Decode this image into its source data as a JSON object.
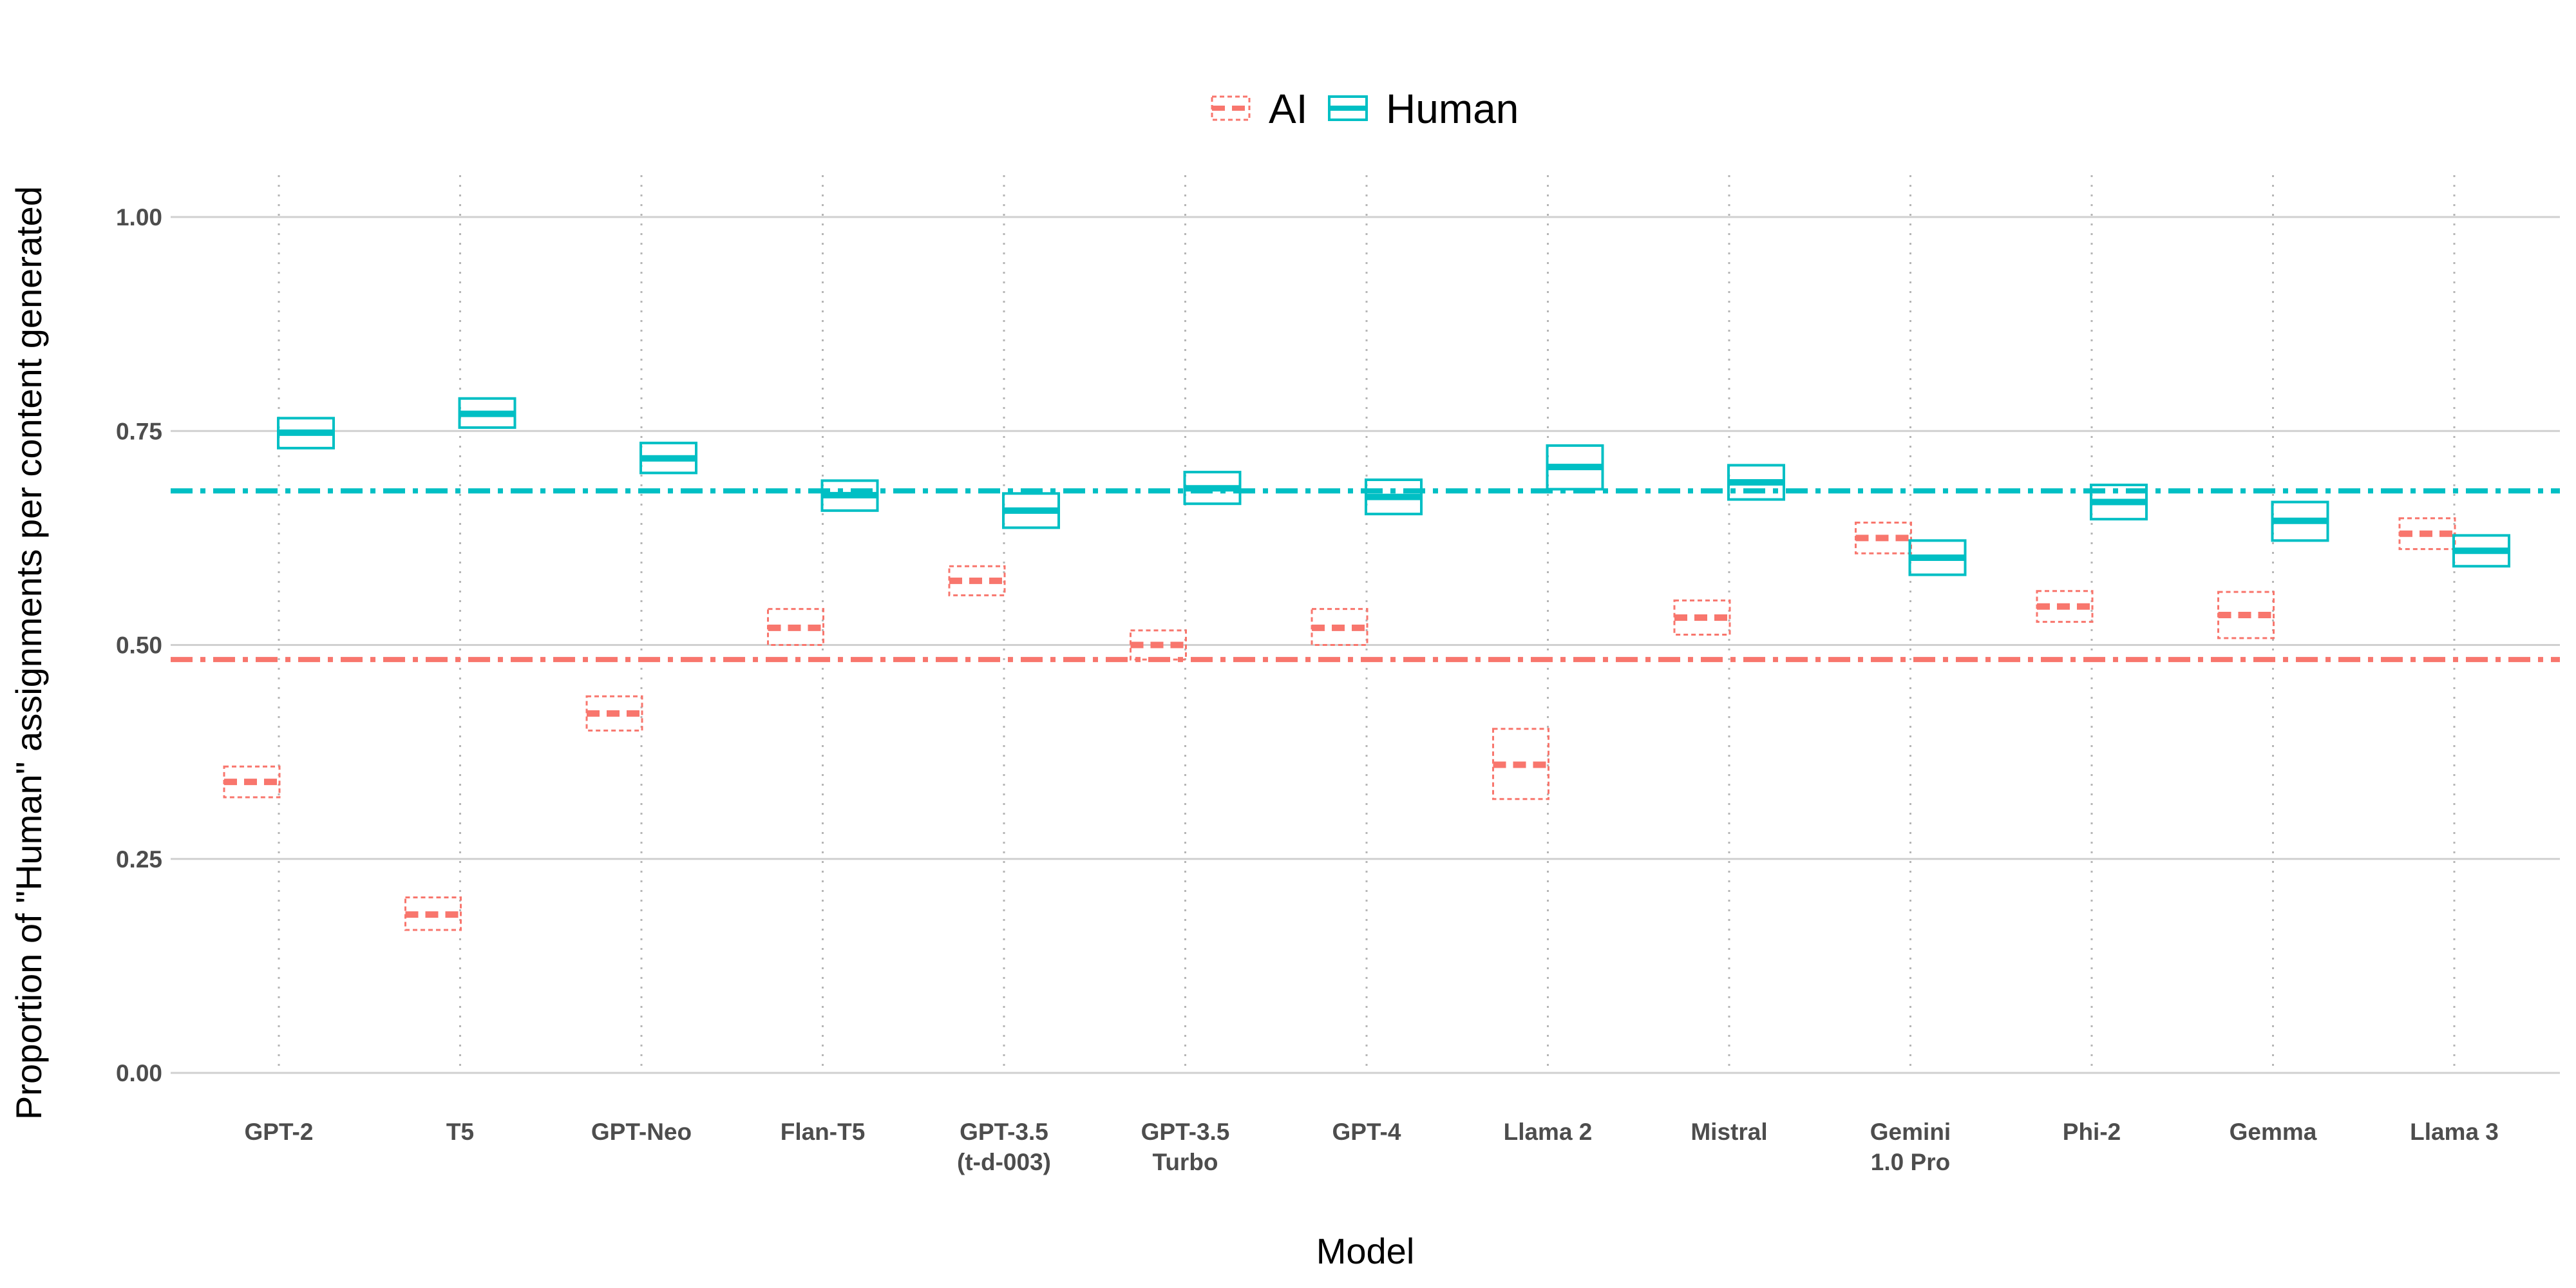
{
  "chart_data": {
    "type": "crossbar",
    "xlabel": "Model",
    "ylabel": "Proportion of \"Human\" assignments per content generated",
    "ylim": [
      0,
      1.05
    ],
    "yticks": [
      0.0,
      0.25,
      0.5,
      0.75,
      1.0
    ],
    "ytick_labels": [
      "0.00",
      "0.25",
      "0.50",
      "0.75",
      "1.00"
    ],
    "grid": true,
    "legend_position": "top",
    "categories": [
      [
        "GPT-2"
      ],
      [
        "T5"
      ],
      [
        "GPT-Neo"
      ],
      [
        "Flan-T5"
      ],
      [
        "GPT-3.5",
        "(t-d-003)"
      ],
      [
        "GPT-3.5",
        "Turbo"
      ],
      [
        "GPT-4"
      ],
      [
        "Llama 2"
      ],
      [
        "Mistral"
      ],
      [
        "Gemini",
        "1.0 Pro"
      ],
      [
        "Phi-2"
      ],
      [
        "Gemma"
      ],
      [
        "Llama 3"
      ]
    ],
    "series": [
      {
        "name": "AI",
        "color": "#F8766D",
        "linetype": "dashed",
        "mean": [
          0.34,
          0.185,
          0.42,
          0.52,
          0.575,
          0.5,
          0.52,
          0.36,
          0.532,
          0.625,
          0.545,
          0.535,
          0.63
        ],
        "lower": [
          0.322,
          0.167,
          0.4,
          0.5,
          0.558,
          0.483,
          0.5,
          0.32,
          0.512,
          0.607,
          0.527,
          0.508,
          0.612
        ],
        "upper": [
          0.358,
          0.205,
          0.44,
          0.542,
          0.592,
          0.517,
          0.542,
          0.402,
          0.552,
          0.643,
          0.563,
          0.562,
          0.648
        ],
        "reference_line": 0.483
      },
      {
        "name": "Human",
        "color": "#00BFC4",
        "linetype": "solid",
        "mean": [
          0.748,
          0.77,
          0.718,
          0.675,
          0.657,
          0.683,
          0.673,
          0.708,
          0.69,
          0.602,
          0.667,
          0.645,
          0.61
        ],
        "lower": [
          0.73,
          0.754,
          0.701,
          0.657,
          0.637,
          0.665,
          0.653,
          0.682,
          0.67,
          0.582,
          0.647,
          0.622,
          0.592
        ],
        "upper": [
          0.765,
          0.788,
          0.736,
          0.692,
          0.677,
          0.702,
          0.693,
          0.733,
          0.71,
          0.622,
          0.687,
          0.667,
          0.628
        ],
        "reference_line": 0.68
      }
    ]
  }
}
